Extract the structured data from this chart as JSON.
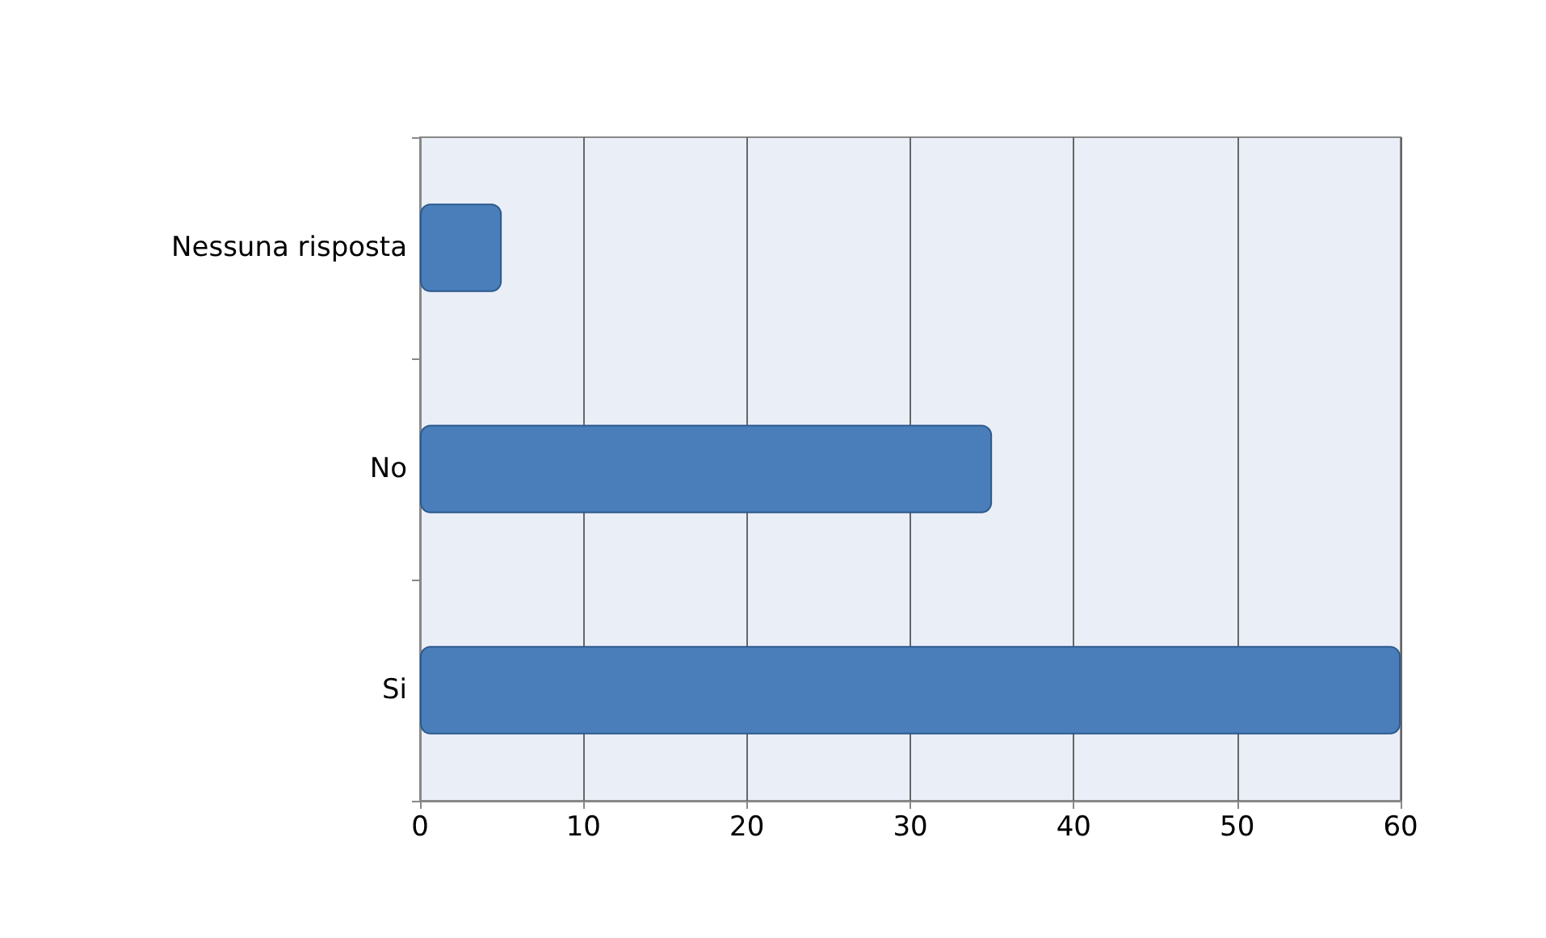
{
  "chart_data": {
    "type": "bar",
    "orientation": "horizontal",
    "categories": [
      "Nessuna risposta",
      "No",
      "Si"
    ],
    "values": [
      5,
      35,
      60
    ],
    "color": "#4a7ebb",
    "xlim": [
      0,
      60
    ],
    "xticks": [
      0,
      10,
      20,
      30,
      40,
      50,
      60
    ],
    "grid": "x"
  }
}
